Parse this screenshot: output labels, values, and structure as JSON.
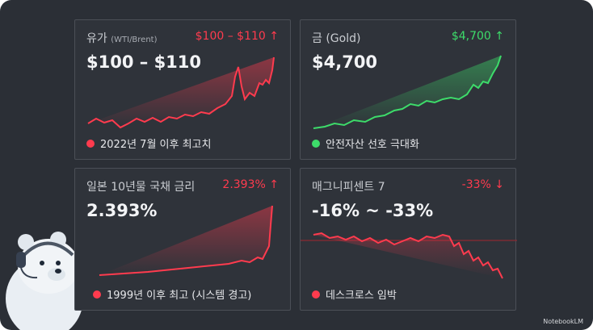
{
  "cards": [
    {
      "title": "유가",
      "subtitle": "(WTI/Brent)",
      "change": "$100 – $110",
      "arrow": "↑",
      "value": "$100 – $110",
      "note": "2022년 7월 이후 최고치",
      "color": "#ff3b4e"
    },
    {
      "title": "금 (Gold)",
      "change": "$4,700",
      "arrow": "↑",
      "value": "$4,700",
      "note": "안전자산 선호 극대화",
      "color": "#3ddc6a"
    },
    {
      "title": "일본 10년물 국채 금리",
      "change": "2.393%",
      "arrow": "↑",
      "value": "2.393%",
      "note": "1999년 이후 최고 (시스템 경고)",
      "color": "#ff3b4e"
    },
    {
      "title": "매그니피센트 7",
      "change": "-33%",
      "arrow": "↓",
      "value": "-16% ~ -33%",
      "note": "데스크로스 임박",
      "color": "#ff3b4e"
    }
  ],
  "footer": "NotebookLM"
}
